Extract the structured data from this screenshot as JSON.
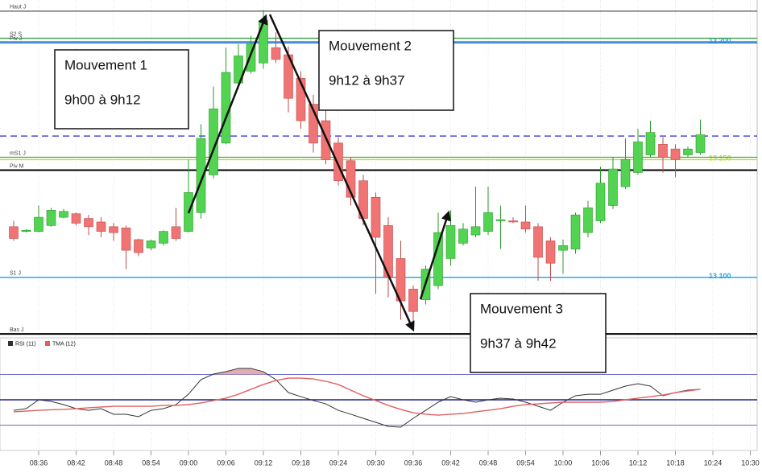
{
  "chart_data": [
    {
      "type": "candlestick",
      "categories": [
        null,
        null,
        "08:36",
        null,
        null,
        "08:42",
        null,
        null,
        "08:48",
        null,
        null,
        "08:54",
        null,
        null,
        "09:00",
        null,
        null,
        "09:06",
        null,
        null,
        "09:12",
        null,
        null,
        "09:18",
        null,
        null,
        "09:24",
        null,
        null,
        "09:30",
        null,
        null,
        "09:36",
        null,
        null,
        "09:42",
        null,
        null,
        "09:48",
        null,
        null,
        "09:54",
        null,
        null,
        "10:00",
        null,
        null,
        "10:06",
        null,
        null,
        "10:12",
        null,
        null,
        "10:18",
        null,
        null,
        "10:24",
        null,
        null,
        "10:30"
      ],
      "open": [
        13121.5,
        13119.5,
        13119.5,
        13122,
        13125.5,
        13127,
        13125,
        13123.5,
        13121.5,
        13121,
        13116,
        13112.5,
        13114.5,
        13121.5,
        13119.5,
        13127.5,
        13143.5,
        13157,
        13182.5,
        13187.5,
        13191,
        13197.5,
        13194.5,
        13184.5,
        13173.5,
        13166.5,
        13157,
        13149.5,
        13141,
        13134,
        13122,
        13108,
        13095,
        13090.5,
        13096.5,
        13108,
        13114.5,
        13118,
        13119.5,
        13124,
        13124,
        13123.5,
        13121.5,
        13115.5,
        13111.5,
        13112,
        13119,
        13124,
        13130.5,
        13138.5,
        13144.5,
        13152,
        13156.5,
        13154.5,
        13152,
        13153,
        null,
        null,
        null,
        null
      ],
      "high": [
        13124,
        13120.5,
        13130.5,
        13129.5,
        13129,
        13127.5,
        13126.5,
        13125.5,
        13123,
        13122,
        13116.5,
        13116,
        13120,
        13129.5,
        13150,
        13165,
        13181,
        13197.5,
        13199,
        13202.5,
        13213.5,
        13204,
        13198,
        13187.5,
        13177.5,
        13171.5,
        13159.5,
        13151,
        13143.5,
        13136,
        13125.5,
        13115.5,
        13096.5,
        13105,
        13127.5,
        13128.5,
        13123,
        13138.5,
        13138.5,
        13130.5,
        13125.5,
        13130.5,
        13123,
        13117,
        13116,
        13127.5,
        13132.5,
        13147,
        13151,
        13159,
        13163,
        13166.5,
        13159.5,
        13156.5,
        13155.5,
        13167,
        null,
        null,
        null,
        null
      ],
      "low": [
        13115.5,
        13119,
        13119,
        13121.5,
        13125,
        13122,
        13118,
        13117,
        13115.5,
        13103.5,
        13109,
        13111.5,
        13113.5,
        13115.5,
        13119,
        13125,
        13142,
        13156.5,
        13180,
        13186.5,
        13188.5,
        13191,
        13170,
        13163,
        13153,
        13148,
        13139,
        13130.5,
        13122,
        13093,
        13091.5,
        13082,
        13078,
        13088.5,
        13095,
        13105,
        13113.5,
        13117,
        13118,
        13112,
        13123,
        13119,
        13098.5,
        13098.5,
        13101.5,
        13110,
        13117,
        13123,
        13129,
        13137.5,
        13143.5,
        13151,
        13144.5,
        13142.5,
        13151,
        13152,
        null,
        null,
        null,
        null
      ],
      "close": [
        13116.5,
        13120,
        13125.5,
        13128.5,
        13128,
        13123,
        13121.5,
        13119.5,
        13119,
        13111.5,
        13110.5,
        13115.5,
        13119.5,
        13116.5,
        13136,
        13159,
        13171.5,
        13187,
        13194,
        13199,
        13209,
        13192.5,
        13176,
        13166.5,
        13157,
        13150,
        13141,
        13134,
        13125,
        13117,
        13100,
        13090,
        13085.5,
        13103.5,
        13119,
        13122,
        13120.5,
        13121.5,
        13127.5,
        13124.5,
        13123.5,
        13120.5,
        13108.5,
        13106,
        13113.5,
        13126.5,
        13129.5,
        13140,
        13146,
        13150,
        13157.5,
        13161.5,
        13151,
        13150,
        13154.5,
        13160.5,
        null,
        null,
        null,
        null
      ],
      "up_color": "#52d452",
      "down_color": "#f07474",
      "ylim": [
        13075,
        13215
      ],
      "yticks": [
        {
          "value": 13200,
          "label": "13 200"
        },
        {
          "value": 13150,
          "label": "13 150"
        },
        {
          "value": 13100,
          "label": "13 100"
        }
      ],
      "ytick_colors": [
        "#2aa8e0",
        "#b8e040",
        "#2aa8e0"
      ],
      "levels": [
        {
          "name": "Haut J",
          "value": 13213,
          "color": "#555555"
        },
        {
          "name": "S2 S",
          "value": 13201.5,
          "color": "#2a9d3a"
        },
        {
          "name": "Piv J",
          "value": 13199.5,
          "color": "#3060c0"
        },
        {
          "value": 13160,
          "color": "#4a4ae0",
          "dashed": true
        },
        {
          "name": "mS1 J",
          "value": 13151,
          "color": "#3aa040"
        },
        {
          "name": "Piv M",
          "value": 13145.5,
          "color": "#000000"
        },
        {
          "name": "S1 J",
          "value": 13100,
          "color": "#2aa8e0"
        },
        {
          "name": "Bas J",
          "value": 13076,
          "color": "#000000"
        }
      ]
    },
    {
      "type": "line",
      "series": [
        {
          "name": "RSI (11)",
          "color": "#333333",
          "values": [
            41.7,
            43,
            50,
            48.7,
            46.2,
            43,
            41.7,
            43,
            38.6,
            38.6,
            36.7,
            41.7,
            43,
            46.2,
            54.4,
            65.9,
            70.3,
            72.2,
            74.8,
            74.8,
            72.2,
            65.9,
            55.7,
            52.5,
            49.4,
            46.8,
            41.7,
            38.6,
            35.4,
            32.2,
            29,
            28.4,
            35.4,
            41.7,
            48.1,
            52.5,
            50,
            48.1,
            50,
            51.3,
            50.6,
            48.1,
            44.9,
            41.7,
            48.1,
            53.2,
            54.4,
            54.4,
            57.6,
            60.8,
            62.7,
            60.8,
            53.2,
            55.7,
            57.6,
            58.3,
            null,
            null,
            null,
            null
          ]
        },
        {
          "name": "TMA (12)",
          "color": "#e06060",
          "values": [
            40.5,
            41.1,
            41.7,
            42.1,
            42.4,
            43,
            43.7,
            44.3,
            44.9,
            44.9,
            44.9,
            44.9,
            45.6,
            45.6,
            46.2,
            47.5,
            49.4,
            51.3,
            54.4,
            58.3,
            62.1,
            65.2,
            67.1,
            67.1,
            66.5,
            64.6,
            62.1,
            57.6,
            53.2,
            49.4,
            45.6,
            42.4,
            39.8,
            38.6,
            37.9,
            38.6,
            39.2,
            40.5,
            41.7,
            43,
            44.9,
            46.2,
            46.8,
            47.5,
            48.1,
            48.1,
            48.1,
            48.1,
            48.7,
            50,
            51.3,
            52.5,
            53.8,
            55.7,
            57,
            58.3,
            null,
            null,
            null,
            null
          ]
        }
      ],
      "ylim": [
        10,
        85
      ],
      "levels": [
        70,
        50,
        30
      ],
      "level_colors": [
        "#6a6ad0",
        "#20208a",
        "#6a6ad0"
      ],
      "overbought_fill": "#d8a0a8"
    }
  ],
  "annotations": [
    {
      "lines": [
        "Mouvement 1",
        "9h00 à 9h12"
      ]
    },
    {
      "lines": [
        "Mouvement 2",
        "9h12 à 9h37"
      ]
    },
    {
      "lines": [
        "Mouvement 3",
        "9h37 à 9h42"
      ]
    }
  ]
}
